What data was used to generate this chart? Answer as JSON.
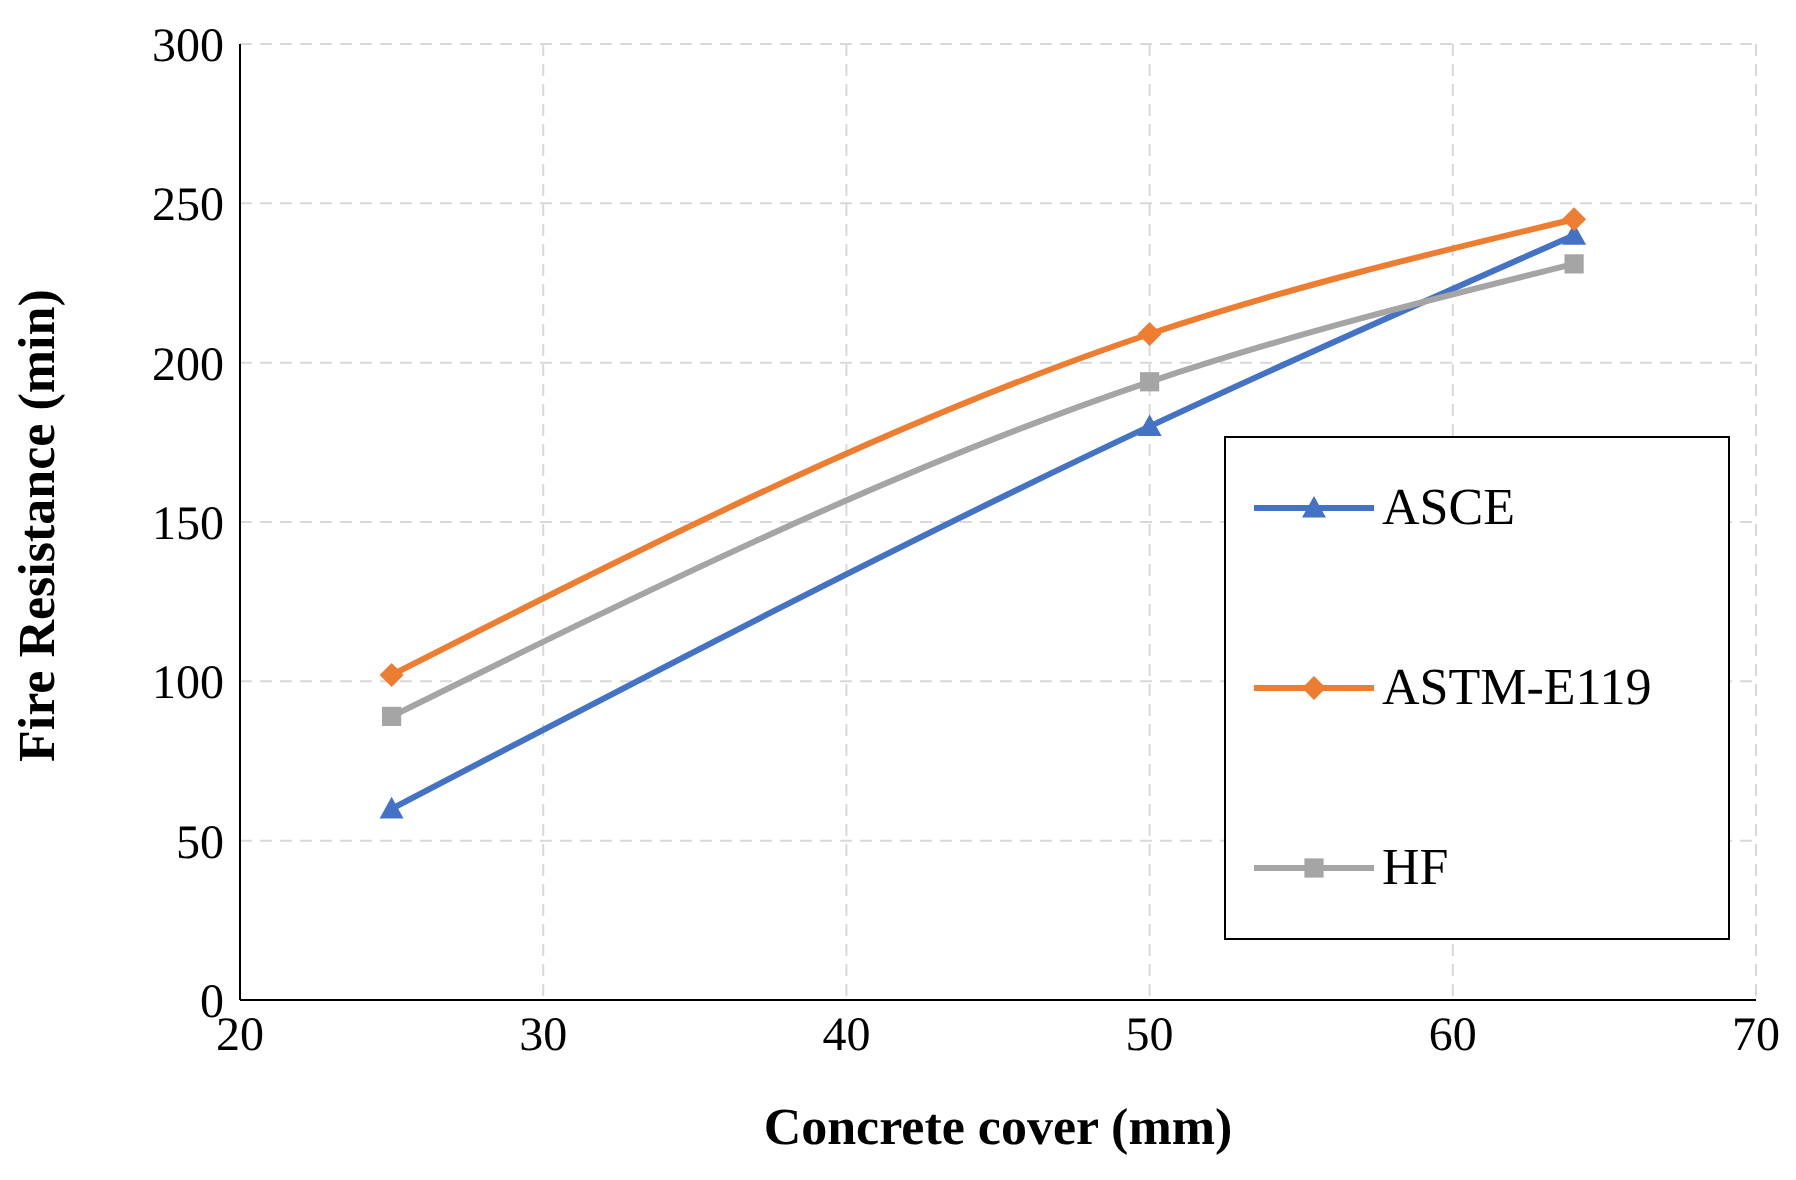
{
  "chart_data": {
    "type": "line",
    "xlabel": "Concrete cover (mm)",
    "ylabel": "Fire Resistance (min)",
    "x": [
      25,
      50,
      64
    ],
    "series": [
      {
        "name": "ASCE",
        "color": "#4472c4",
        "marker": "triangle",
        "values": [
          60,
          180,
          240
        ]
      },
      {
        "name": "ASTM-E119",
        "color": "#ed7d31",
        "marker": "diamond",
        "values": [
          102,
          209,
          245
        ]
      },
      {
        "name": "HF",
        "color": "#a5a5a5",
        "marker": "square",
        "values": [
          89,
          194,
          231
        ]
      }
    ],
    "xlim": [
      20,
      70
    ],
    "xticks": [
      20,
      30,
      40,
      50,
      60,
      70
    ],
    "ylim": [
      0,
      300
    ],
    "yticks": [
      0,
      50,
      100,
      150,
      200,
      250,
      300
    ],
    "grid": true,
    "legend": "right",
    "line_style": "solid"
  }
}
